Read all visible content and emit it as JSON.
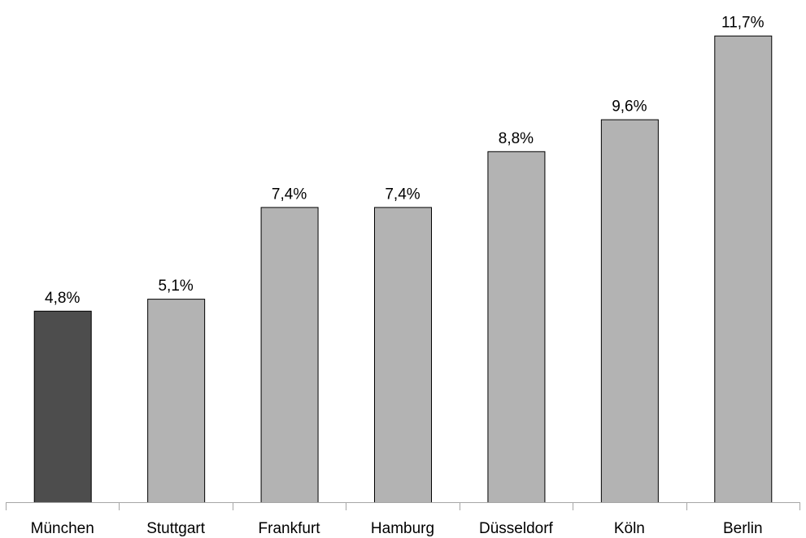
{
  "chart_data": {
    "type": "bar",
    "categories": [
      "München",
      "Stuttgart",
      "Frankfurt",
      "Hamburg",
      "Düsseldorf",
      "Köln",
      "Berlin"
    ],
    "values": [
      4.8,
      5.1,
      7.4,
      7.4,
      8.8,
      9.6,
      11.7
    ],
    "data_labels": [
      "4,8%",
      "5,1%",
      "7,4%",
      "7,4%",
      "8,8%",
      "9,6%",
      "11,7%"
    ],
    "title": "",
    "xlabel": "",
    "ylabel": "",
    "ylim": [
      0,
      13
    ],
    "grid": false,
    "legend": "none",
    "colors": {
      "highlight": "#4d4d4d",
      "default": "#b3b3b3",
      "highlight_index": 0
    }
  }
}
